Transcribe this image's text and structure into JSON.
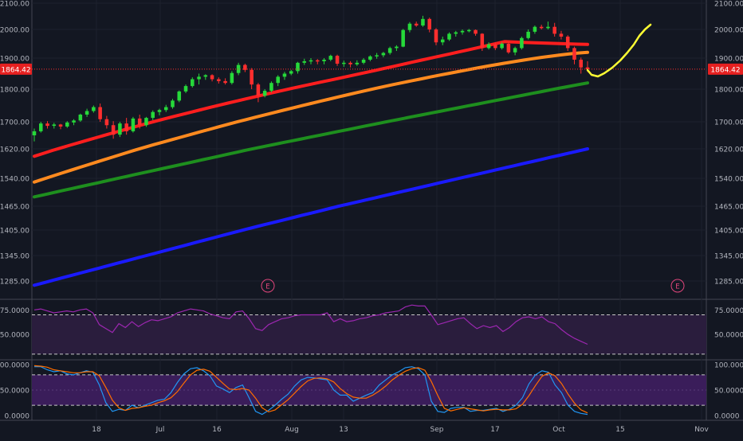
{
  "chart_data": [
    {
      "type": "candlestick",
      "panel": "price",
      "current_price": 1864.42,
      "current_price_label": "1864.42",
      "y_tick_labels": [
        "2100.00",
        "2000.00",
        "1900.00",
        "1800.00",
        "1700.00",
        "1620.00",
        "1540.00",
        "1465.00",
        "1405.00",
        "1345.00",
        "1285.00"
      ],
      "y_tick_values": [
        2100,
        2000,
        1900,
        1800,
        1700,
        1620,
        1540,
        1465,
        1405,
        1345,
        1285
      ],
      "x_tick_labels": [
        "18",
        "Jul",
        "16",
        "Aug",
        "13",
        "Sep",
        "17",
        "Oct",
        "15",
        "Nov"
      ],
      "earnings_markers": [
        "E",
        "E"
      ],
      "candles": [
        {
          "date": "2018-06-11",
          "o": 1660,
          "h": 1680,
          "l": 1642,
          "c": 1672
        },
        {
          "date": "2018-06-12",
          "o": 1672,
          "h": 1700,
          "l": 1668,
          "c": 1695
        },
        {
          "date": "2018-06-13",
          "o": 1695,
          "h": 1702,
          "l": 1680,
          "c": 1688
        },
        {
          "date": "2018-06-14",
          "o": 1688,
          "h": 1697,
          "l": 1680,
          "c": 1692
        },
        {
          "date": "2018-06-15",
          "o": 1692,
          "h": 1694,
          "l": 1678,
          "c": 1686
        },
        {
          "date": "2018-06-18",
          "o": 1686,
          "h": 1702,
          "l": 1682,
          "c": 1698
        },
        {
          "date": "2018-06-19",
          "o": 1698,
          "h": 1708,
          "l": 1690,
          "c": 1704
        },
        {
          "date": "2018-06-20",
          "o": 1704,
          "h": 1725,
          "l": 1700,
          "c": 1722
        },
        {
          "date": "2018-06-21",
          "o": 1722,
          "h": 1740,
          "l": 1715,
          "c": 1733
        },
        {
          "date": "2018-06-22",
          "o": 1733,
          "h": 1750,
          "l": 1728,
          "c": 1745
        },
        {
          "date": "2018-06-25",
          "o": 1745,
          "h": 1756,
          "l": 1700,
          "c": 1708
        },
        {
          "date": "2018-06-26",
          "o": 1708,
          "h": 1718,
          "l": 1680,
          "c": 1690
        },
        {
          "date": "2018-06-27",
          "o": 1690,
          "h": 1702,
          "l": 1650,
          "c": 1662
        },
        {
          "date": "2018-06-28",
          "o": 1662,
          "h": 1700,
          "l": 1655,
          "c": 1695
        },
        {
          "date": "2018-06-29",
          "o": 1695,
          "h": 1712,
          "l": 1662,
          "c": 1672
        },
        {
          "date": "2018-07-02",
          "o": 1672,
          "h": 1715,
          "l": 1668,
          "c": 1710
        },
        {
          "date": "2018-07-03",
          "o": 1710,
          "h": 1722,
          "l": 1680,
          "c": 1690
        },
        {
          "date": "2018-07-05",
          "o": 1690,
          "h": 1715,
          "l": 1685,
          "c": 1712
        },
        {
          "date": "2018-07-06",
          "o": 1712,
          "h": 1735,
          "l": 1705,
          "c": 1730
        },
        {
          "date": "2018-07-09",
          "o": 1730,
          "h": 1740,
          "l": 1720,
          "c": 1736
        },
        {
          "date": "2018-07-10",
          "o": 1736,
          "h": 1752,
          "l": 1730,
          "c": 1745
        },
        {
          "date": "2018-07-11",
          "o": 1745,
          "h": 1770,
          "l": 1740,
          "c": 1765
        },
        {
          "date": "2018-07-12",
          "o": 1765,
          "h": 1796,
          "l": 1760,
          "c": 1793
        },
        {
          "date": "2018-07-13",
          "o": 1793,
          "h": 1815,
          "l": 1788,
          "c": 1810
        },
        {
          "date": "2018-07-16",
          "o": 1810,
          "h": 1838,
          "l": 1805,
          "c": 1832
        },
        {
          "date": "2018-07-17",
          "o": 1832,
          "h": 1850,
          "l": 1815,
          "c": 1840
        },
        {
          "date": "2018-07-18",
          "o": 1840,
          "h": 1848,
          "l": 1830,
          "c": 1845
        },
        {
          "date": "2018-07-19",
          "o": 1845,
          "h": 1848,
          "l": 1825,
          "c": 1832
        },
        {
          "date": "2018-07-20",
          "o": 1832,
          "h": 1838,
          "l": 1818,
          "c": 1826
        },
        {
          "date": "2018-07-23",
          "o": 1826,
          "h": 1835,
          "l": 1815,
          "c": 1820
        },
        {
          "date": "2018-07-24",
          "o": 1820,
          "h": 1858,
          "l": 1815,
          "c": 1852
        },
        {
          "date": "2018-07-25",
          "o": 1852,
          "h": 1885,
          "l": 1845,
          "c": 1878
        },
        {
          "date": "2018-07-26",
          "o": 1878,
          "h": 1882,
          "l": 1855,
          "c": 1862
        },
        {
          "date": "2018-07-27",
          "o": 1862,
          "h": 1868,
          "l": 1800,
          "c": 1815
        },
        {
          "date": "2018-07-30",
          "o": 1815,
          "h": 1820,
          "l": 1760,
          "c": 1780
        },
        {
          "date": "2018-07-31",
          "o": 1780,
          "h": 1800,
          "l": 1775,
          "c": 1795
        },
        {
          "date": "2018-08-01",
          "o": 1795,
          "h": 1825,
          "l": 1790,
          "c": 1820
        },
        {
          "date": "2018-08-02",
          "o": 1820,
          "h": 1845,
          "l": 1810,
          "c": 1840
        },
        {
          "date": "2018-08-03",
          "o": 1840,
          "h": 1856,
          "l": 1830,
          "c": 1850
        },
        {
          "date": "2018-08-06",
          "o": 1850,
          "h": 1862,
          "l": 1845,
          "c": 1858
        },
        {
          "date": "2018-08-07",
          "o": 1858,
          "h": 1888,
          "l": 1850,
          "c": 1885
        },
        {
          "date": "2018-08-08",
          "o": 1885,
          "h": 1898,
          "l": 1878,
          "c": 1890
        },
        {
          "date": "2018-08-09",
          "o": 1890,
          "h": 1900,
          "l": 1880,
          "c": 1893
        },
        {
          "date": "2018-08-10",
          "o": 1893,
          "h": 1897,
          "l": 1880,
          "c": 1890
        },
        {
          "date": "2018-08-13",
          "o": 1890,
          "h": 1900,
          "l": 1880,
          "c": 1895
        },
        {
          "date": "2018-08-14",
          "o": 1895,
          "h": 1912,
          "l": 1890,
          "c": 1908
        },
        {
          "date": "2018-08-15",
          "o": 1908,
          "h": 1912,
          "l": 1875,
          "c": 1882
        },
        {
          "date": "2018-08-16",
          "o": 1882,
          "h": 1892,
          "l": 1872,
          "c": 1885
        },
        {
          "date": "2018-08-17",
          "o": 1885,
          "h": 1890,
          "l": 1870,
          "c": 1880
        },
        {
          "date": "2018-08-20",
          "o": 1880,
          "h": 1893,
          "l": 1875,
          "c": 1885
        },
        {
          "date": "2018-08-21",
          "o": 1885,
          "h": 1900,
          "l": 1880,
          "c": 1895
        },
        {
          "date": "2018-08-22",
          "o": 1895,
          "h": 1910,
          "l": 1890,
          "c": 1906
        },
        {
          "date": "2018-08-23",
          "o": 1906,
          "h": 1918,
          "l": 1898,
          "c": 1910
        },
        {
          "date": "2018-08-24",
          "o": 1910,
          "h": 1922,
          "l": 1903,
          "c": 1918
        },
        {
          "date": "2018-08-27",
          "o": 1918,
          "h": 1940,
          "l": 1912,
          "c": 1935
        },
        {
          "date": "2018-08-28",
          "o": 1935,
          "h": 1945,
          "l": 1925,
          "c": 1940
        },
        {
          "date": "2018-08-29",
          "o": 1940,
          "h": 2002,
          "l": 1938,
          "c": 1998
        },
        {
          "date": "2018-08-30",
          "o": 1998,
          "h": 2028,
          "l": 1990,
          "c": 2022
        },
        {
          "date": "2018-08-31",
          "o": 2022,
          "h": 2030,
          "l": 2010,
          "c": 2015
        },
        {
          "date": "2018-09-04",
          "o": 2015,
          "h": 2052,
          "l": 2010,
          "c": 2040
        },
        {
          "date": "2018-09-05",
          "o": 2040,
          "h": 2045,
          "l": 1990,
          "c": 2000
        },
        {
          "date": "2018-09-06",
          "o": 2000,
          "h": 2005,
          "l": 1945,
          "c": 1955
        },
        {
          "date": "2018-09-07",
          "o": 1955,
          "h": 1975,
          "l": 1945,
          "c": 1965
        },
        {
          "date": "2018-09-10",
          "o": 1965,
          "h": 1990,
          "l": 1960,
          "c": 1985
        },
        {
          "date": "2018-09-11",
          "o": 1985,
          "h": 1995,
          "l": 1975,
          "c": 1990
        },
        {
          "date": "2018-09-12",
          "o": 1990,
          "h": 2000,
          "l": 1982,
          "c": 1995
        },
        {
          "date": "2018-09-13",
          "o": 1995,
          "h": 2002,
          "l": 1990,
          "c": 1998
        },
        {
          "date": "2018-09-14",
          "o": 1998,
          "h": 2000,
          "l": 1978,
          "c": 1985
        },
        {
          "date": "2018-09-17",
          "o": 1985,
          "h": 1987,
          "l": 1925,
          "c": 1935
        },
        {
          "date": "2018-09-18",
          "o": 1935,
          "h": 1955,
          "l": 1930,
          "c": 1948
        },
        {
          "date": "2018-09-19",
          "o": 1948,
          "h": 1955,
          "l": 1928,
          "c": 1935
        },
        {
          "date": "2018-09-20",
          "o": 1935,
          "h": 1955,
          "l": 1930,
          "c": 1950
        },
        {
          "date": "2018-09-21",
          "o": 1950,
          "h": 1955,
          "l": 1915,
          "c": 1920
        },
        {
          "date": "2018-09-24",
          "o": 1920,
          "h": 1940,
          "l": 1910,
          "c": 1935
        },
        {
          "date": "2018-09-25",
          "o": 1935,
          "h": 1975,
          "l": 1930,
          "c": 1970
        },
        {
          "date": "2018-09-26",
          "o": 1970,
          "h": 2000,
          "l": 1965,
          "c": 1992
        },
        {
          "date": "2018-09-27",
          "o": 1992,
          "h": 2015,
          "l": 1985,
          "c": 2010
        },
        {
          "date": "2018-09-28",
          "o": 2010,
          "h": 2018,
          "l": 2000,
          "c": 2005
        },
        {
          "date": "2018-10-01",
          "o": 2005,
          "h": 2030,
          "l": 2000,
          "c": 2010
        },
        {
          "date": "2018-10-02",
          "o": 2010,
          "h": 2025,
          "l": 1975,
          "c": 1985
        },
        {
          "date": "2018-10-03",
          "o": 1985,
          "h": 1995,
          "l": 1965,
          "c": 1975
        },
        {
          "date": "2018-10-04",
          "o": 1975,
          "h": 1980,
          "l": 1925,
          "c": 1935
        },
        {
          "date": "2018-10-05",
          "o": 1935,
          "h": 1940,
          "l": 1880,
          "c": 1895
        },
        {
          "date": "2018-10-08",
          "o": 1895,
          "h": 1902,
          "l": 1850,
          "c": 1870
        },
        {
          "date": "2018-10-09",
          "o": 1870,
          "h": 1890,
          "l": 1855,
          "c": 1864.42
        }
      ],
      "moving_averages": [
        {
          "color": "#ff1e1e",
          "start": 1600,
          "end": 1950,
          "peak": 1965
        },
        {
          "color": "#ff8a1f",
          "start": 1530,
          "end": 1920
        },
        {
          "color": "#1e8f1e",
          "start": 1490,
          "end": 1820
        },
        {
          "color": "#1a1aff",
          "start": 1275,
          "end": 1620
        }
      ],
      "projection_color": "#ffff33"
    },
    {
      "type": "line",
      "panel": "rsi",
      "y_tick_labels": [
        "75.0000",
        "50.0000"
      ],
      "y_tick_values": [
        75,
        50
      ],
      "band": [
        30,
        70
      ],
      "ylim": [
        25,
        85
      ],
      "line_color": "#9c27b0",
      "values": [
        75,
        76,
        74,
        72,
        73,
        74,
        73,
        75,
        76,
        72,
        60,
        56,
        52,
        61,
        57,
        63,
        58,
        62,
        65,
        64,
        66,
        68,
        72,
        74,
        76,
        75,
        74,
        71,
        69,
        67,
        66,
        73,
        74,
        66,
        56,
        54,
        60,
        63,
        66,
        67,
        69,
        70,
        70,
        70,
        70,
        72,
        63,
        66,
        63,
        64,
        66,
        67,
        69,
        70,
        72,
        73,
        74,
        78,
        80,
        79,
        79,
        70,
        60,
        62,
        64,
        66,
        67,
        61,
        56,
        59,
        57,
        59,
        53,
        57,
        63,
        67,
        68,
        66,
        68,
        63,
        61,
        55,
        50,
        46,
        43,
        40
      ]
    },
    {
      "type": "line",
      "panel": "stochastic",
      "y_tick_labels": [
        "100.0000",
        "50.0000",
        "0.0000"
      ],
      "y_tick_values": [
        100,
        50,
        0
      ],
      "band": [
        20,
        80
      ],
      "ylim": [
        -8,
        108
      ],
      "series": [
        {
          "color": "#2196f3",
          "values": [
            96,
            96,
            90,
            86,
            88,
            82,
            80,
            84,
            88,
            85,
            60,
            25,
            8,
            12,
            10,
            20,
            15,
            20,
            25,
            30,
            32,
            45,
            65,
            82,
            92,
            94,
            88,
            78,
            58,
            52,
            45,
            55,
            60,
            35,
            8,
            2,
            10,
            20,
            32,
            42,
            58,
            70,
            75,
            74,
            72,
            70,
            50,
            40,
            40,
            28,
            34,
            40,
            45,
            60,
            70,
            80,
            86,
            94,
            96,
            92,
            80,
            28,
            8,
            6,
            14,
            16,
            16,
            8,
            10,
            10,
            12,
            14,
            8,
            12,
            20,
            35,
            62,
            80,
            88,
            85,
            60,
            45,
            20,
            8,
            4,
            2
          ]
        },
        {
          "color": "#ff6d00",
          "values": [
            98,
            97,
            95,
            90,
            88,
            86,
            84,
            84,
            86,
            86,
            78,
            55,
            30,
            15,
            10,
            14,
            15,
            18,
            20,
            25,
            29,
            35,
            47,
            64,
            80,
            89,
            91,
            87,
            75,
            63,
            52,
            51,
            53,
            50,
            34,
            15,
            7,
            11,
            21,
            31,
            44,
            57,
            68,
            73,
            74,
            72,
            66,
            53,
            43,
            36,
            34,
            34,
            40,
            48,
            58,
            70,
            79,
            87,
            92,
            94,
            89,
            67,
            39,
            14,
            9,
            12,
            15,
            13,
            11,
            9,
            11,
            12,
            11,
            11,
            13,
            22,
            39,
            59,
            77,
            84,
            78,
            63,
            42,
            24,
            11,
            5
          ]
        }
      ]
    }
  ]
}
